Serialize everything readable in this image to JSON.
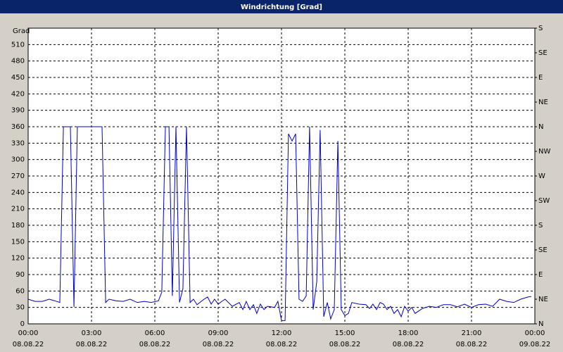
{
  "chart_data": {
    "type": "line",
    "title": "Windrichtung [Grad]",
    "y_label": "Grad",
    "xlim": [
      0,
      24
    ],
    "xticks": [
      {
        "value": 0,
        "label": "00:00",
        "date": "08.08.22"
      },
      {
        "value": 3,
        "label": "03:00",
        "date": "08.08.22"
      },
      {
        "value": 6,
        "label": "06:00",
        "date": "08.08.22"
      },
      {
        "value": 9,
        "label": "09:00",
        "date": "08.08.22"
      },
      {
        "value": 12,
        "label": "12:00",
        "date": "08.08.22"
      },
      {
        "value": 15,
        "label": "15:00",
        "date": "08.08.22"
      },
      {
        "value": 18,
        "label": "18:00",
        "date": "08.08.22"
      },
      {
        "value": 21,
        "label": "21:00",
        "date": "08.08.22"
      },
      {
        "value": 24,
        "label": "00:00",
        "date": "09.08.22"
      }
    ],
    "ylim": [
      0,
      540
    ],
    "yticks": [
      0,
      30,
      60,
      90,
      120,
      150,
      180,
      210,
      240,
      270,
      300,
      330,
      360,
      390,
      420,
      450,
      480,
      510
    ],
    "y2lim": [
      0,
      540
    ],
    "y2ticks": [
      {
        "value": 0,
        "label": "N"
      },
      {
        "value": 45,
        "label": "NE"
      },
      {
        "value": 90,
        "label": "E"
      },
      {
        "value": 135,
        "label": "SE"
      },
      {
        "value": 180,
        "label": "S"
      },
      {
        "value": 225,
        "label": "SW"
      },
      {
        "value": 270,
        "label": "W"
      },
      {
        "value": 315,
        "label": "NW"
      },
      {
        "value": 360,
        "label": "N"
      },
      {
        "value": 405,
        "label": "NE"
      },
      {
        "value": 450,
        "label": "E"
      },
      {
        "value": 495,
        "label": "SE"
      },
      {
        "value": 540,
        "label": "S"
      }
    ],
    "grid": true,
    "x": [
      0,
      0.33,
      0.67,
      1.0,
      1.27,
      1.5,
      1.67,
      2.0,
      2.17,
      2.33,
      3.5,
      3.67,
      3.83,
      4.17,
      4.5,
      4.83,
      5.17,
      5.5,
      5.83,
      6.17,
      6.33,
      6.5,
      6.67,
      6.83,
      7.0,
      7.17,
      7.33,
      7.5,
      7.67,
      7.83,
      8.0,
      8.33,
      8.5,
      8.67,
      8.83,
      9.0,
      9.17,
      9.33,
      9.67,
      10.0,
      10.17,
      10.33,
      10.5,
      10.67,
      10.83,
      11.0,
      11.17,
      11.33,
      11.67,
      11.83,
      12.0,
      12.17,
      12.33,
      12.5,
      12.67,
      12.83,
      13.0,
      13.17,
      13.33,
      13.5,
      13.67,
      13.83,
      14.0,
      14.17,
      14.33,
      14.5,
      14.67,
      14.83,
      15.0,
      15.17,
      15.33,
      15.67,
      16.0,
      16.17,
      16.33,
      16.5,
      16.67,
      16.83,
      17.0,
      17.17,
      17.33,
      17.5,
      17.67,
      17.83,
      18.0,
      18.17,
      18.33,
      18.67,
      19.0,
      19.33,
      19.67,
      20.0,
      20.33,
      20.67,
      21.0,
      21.33,
      21.67,
      22.0,
      22.33,
      22.67,
      23.0,
      23.33,
      23.67,
      23.83
    ],
    "series": [
      {
        "color": "#0000cc",
        "values": [
          45,
          41,
          41,
          45,
          42,
          39,
          360,
          360,
          31,
          360,
          360,
          39,
          45,
          42,
          41,
          45,
          39,
          41,
          39,
          42,
          58,
          360,
          360,
          51,
          360,
          39,
          64,
          360,
          39,
          45,
          35,
          45,
          49,
          36,
          45,
          36,
          41,
          45,
          32,
          39,
          26,
          41,
          26,
          35,
          19,
          36,
          26,
          32,
          30,
          41,
          6,
          6,
          347,
          334,
          347,
          45,
          41,
          51,
          360,
          26,
          77,
          354,
          13,
          39,
          9,
          26,
          334,
          26,
          15,
          19,
          39,
          36,
          35,
          28,
          36,
          26,
          39,
          36,
          26,
          32,
          19,
          26,
          13,
          32,
          23,
          30,
          19,
          28,
          32,
          30,
          35,
          35,
          31,
          36,
          30,
          35,
          36,
          32,
          45,
          41,
          39,
          45,
          49,
          50
        ]
      }
    ]
  }
}
